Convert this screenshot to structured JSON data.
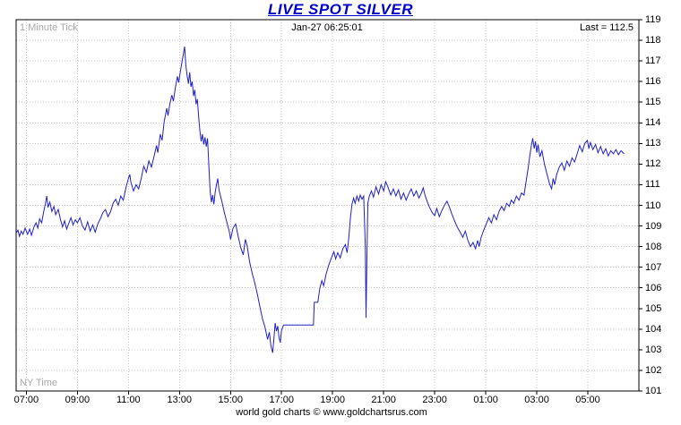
{
  "header": {
    "title": "LIVE SPOT SILVER",
    "timestamp": "Jan-27  06:25:01",
    "tick_label": "1 Minute Tick",
    "last_label": "Last = 112.5"
  },
  "footer": {
    "timezone": "NY Time",
    "credit": "world gold charts © www.goldchartsrus.com"
  },
  "chart_data": {
    "type": "line",
    "title": "LIVE SPOT SILVER",
    "subtitle": "Jan-27  06:25:01",
    "xlabel": "NY Time",
    "ylabel": "",
    "last_value": 112.5,
    "x_ticks": [
      "07:00",
      "09:00",
      "11:00",
      "13:00",
      "15:00",
      "17:00",
      "19:00",
      "21:00",
      "23:00",
      "01:00",
      "03:00",
      "05:00"
    ],
    "x_tick_hours": [
      0,
      2,
      4,
      6,
      8,
      10,
      12,
      14,
      16,
      18,
      20,
      22
    ],
    "xlim": [
      -0.4,
      24.0
    ],
    "ylim": [
      101,
      119
    ],
    "y_tick_step": 1,
    "grid": true,
    "line_color": "#2020cc",
    "grid_color": "#c8c8c8",
    "axis_color": "#000000",
    "title_color": "#0000cc",
    "points": [
      [
        -0.4,
        108.65
      ],
      [
        -0.33,
        108.8
      ],
      [
        -0.27,
        108.5
      ],
      [
        -0.2,
        108.75
      ],
      [
        -0.13,
        108.6
      ],
      [
        -0.05,
        108.9
      ],
      [
        0.05,
        108.6
      ],
      [
        0.13,
        108.85
      ],
      [
        0.2,
        108.55
      ],
      [
        0.3,
        108.95
      ],
      [
        0.38,
        109.15
      ],
      [
        0.45,
        108.9
      ],
      [
        0.52,
        109.35
      ],
      [
        0.6,
        109.15
      ],
      [
        0.68,
        109.7
      ],
      [
        0.75,
        110.1
      ],
      [
        0.8,
        110.45
      ],
      [
        0.85,
        109.9
      ],
      [
        0.92,
        110.15
      ],
      [
        1.0,
        109.7
      ],
      [
        1.08,
        109.95
      ],
      [
        1.15,
        109.55
      ],
      [
        1.25,
        109.8
      ],
      [
        1.33,
        109.35
      ],
      [
        1.42,
        108.95
      ],
      [
        1.5,
        109.25
      ],
      [
        1.58,
        108.85
      ],
      [
        1.67,
        109.15
      ],
      [
        1.75,
        109.4
      ],
      [
        1.83,
        109.05
      ],
      [
        1.92,
        109.3
      ],
      [
        2.0,
        109.15
      ],
      [
        2.1,
        109.4
      ],
      [
        2.2,
        109.0
      ],
      [
        2.3,
        108.8
      ],
      [
        2.4,
        109.2
      ],
      [
        2.5,
        108.75
      ],
      [
        2.6,
        109.05
      ],
      [
        2.7,
        108.7
      ],
      [
        2.8,
        109.1
      ],
      [
        2.9,
        109.35
      ],
      [
        3.0,
        109.65
      ],
      [
        3.1,
        109.8
      ],
      [
        3.2,
        109.45
      ],
      [
        3.3,
        109.7
      ],
      [
        3.4,
        110.1
      ],
      [
        3.5,
        110.3
      ],
      [
        3.6,
        110.0
      ],
      [
        3.7,
        110.45
      ],
      [
        3.8,
        110.25
      ],
      [
        3.9,
        110.85
      ],
      [
        4.0,
        111.3
      ],
      [
        4.05,
        111.5
      ],
      [
        4.1,
        111.1
      ],
      [
        4.2,
        110.7
      ],
      [
        4.3,
        111.0
      ],
      [
        4.4,
        110.8
      ],
      [
        4.5,
        111.3
      ],
      [
        4.6,
        111.9
      ],
      [
        4.7,
        111.6
      ],
      [
        4.8,
        112.15
      ],
      [
        4.9,
        111.85
      ],
      [
        5.0,
        112.35
      ],
      [
        5.1,
        112.9
      ],
      [
        5.15,
        112.55
      ],
      [
        5.25,
        113.45
      ],
      [
        5.32,
        113.15
      ],
      [
        5.4,
        114.05
      ],
      [
        5.5,
        114.7
      ],
      [
        5.55,
        114.35
      ],
      [
        5.62,
        114.9
      ],
      [
        5.7,
        115.35
      ],
      [
        5.76,
        115.05
      ],
      [
        5.84,
        115.7
      ],
      [
        5.92,
        116.25
      ],
      [
        5.97,
        115.95
      ],
      [
        6.05,
        116.6
      ],
      [
        6.12,
        117.1
      ],
      [
        6.2,
        117.7
      ],
      [
        6.25,
        116.8
      ],
      [
        6.3,
        116.3
      ],
      [
        6.35,
        115.9
      ],
      [
        6.4,
        116.45
      ],
      [
        6.45,
        115.75
      ],
      [
        6.5,
        116.0
      ],
      [
        6.55,
        115.3
      ],
      [
        6.6,
        115.6
      ],
      [
        6.65,
        114.9
      ],
      [
        6.7,
        115.15
      ],
      [
        6.75,
        114.3
      ],
      [
        6.8,
        113.6
      ],
      [
        6.85,
        113.1
      ],
      [
        6.9,
        113.45
      ],
      [
        6.95,
        112.95
      ],
      [
        7.0,
        113.3
      ],
      [
        7.05,
        112.85
      ],
      [
        7.1,
        113.25
      ],
      [
        7.15,
        111.9
      ],
      [
        7.2,
        110.7
      ],
      [
        7.25,
        110.15
      ],
      [
        7.3,
        110.5
      ],
      [
        7.35,
        110.05
      ],
      [
        7.4,
        110.65
      ],
      [
        7.45,
        111.0
      ],
      [
        7.5,
        111.3
      ],
      [
        7.55,
        110.75
      ],
      [
        7.65,
        110.25
      ],
      [
        7.75,
        109.7
      ],
      [
        7.85,
        109.2
      ],
      [
        7.95,
        108.75
      ],
      [
        8.0,
        108.35
      ],
      [
        8.1,
        108.9
      ],
      [
        8.2,
        109.1
      ],
      [
        8.3,
        108.5
      ],
      [
        8.4,
        107.95
      ],
      [
        8.5,
        107.6
      ],
      [
        8.58,
        108.35
      ],
      [
        8.65,
        108.05
      ],
      [
        8.75,
        107.25
      ],
      [
        8.85,
        106.7
      ],
      [
        8.95,
        106.25
      ],
      [
        9.05,
        105.7
      ],
      [
        9.15,
        105.1
      ],
      [
        9.25,
        104.5
      ],
      [
        9.35,
        104.1
      ],
      [
        9.45,
        103.5
      ],
      [
        9.52,
        103.85
      ],
      [
        9.58,
        103.2
      ],
      [
        9.65,
        102.85
      ],
      [
        9.7,
        103.55
      ],
      [
        9.75,
        104.3
      ],
      [
        9.8,
        103.9
      ],
      [
        9.85,
        104.15
      ],
      [
        9.9,
        103.6
      ],
      [
        9.95,
        103.35
      ],
      [
        10.0,
        103.95
      ],
      [
        10.08,
        104.2
      ],
      [
        11.25,
        104.2
      ],
      [
        11.28,
        105.3
      ],
      [
        11.42,
        105.3
      ],
      [
        11.5,
        106.0
      ],
      [
        11.58,
        106.35
      ],
      [
        11.65,
        106.1
      ],
      [
        11.75,
        106.7
      ],
      [
        11.85,
        107.1
      ],
      [
        11.95,
        107.45
      ],
      [
        12.05,
        107.75
      ],
      [
        12.12,
        107.4
      ],
      [
        12.2,
        107.7
      ],
      [
        12.3,
        107.45
      ],
      [
        12.4,
        107.9
      ],
      [
        12.5,
        108.1
      ],
      [
        12.57,
        107.7
      ],
      [
        12.63,
        108.35
      ],
      [
        12.7,
        109.4
      ],
      [
        12.76,
        110.05
      ],
      [
        12.82,
        110.35
      ],
      [
        12.88,
        110.1
      ],
      [
        12.95,
        110.45
      ],
      [
        13.02,
        110.2
      ],
      [
        13.08,
        110.5
      ],
      [
        13.15,
        110.3
      ],
      [
        13.22,
        110.45
      ],
      [
        13.28,
        108.0
      ],
      [
        13.31,
        104.55
      ],
      [
        13.34,
        107.2
      ],
      [
        13.38,
        110.1
      ],
      [
        13.44,
        110.45
      ],
      [
        13.52,
        110.7
      ],
      [
        13.6,
        110.4
      ],
      [
        13.7,
        110.9
      ],
      [
        13.8,
        110.55
      ],
      [
        13.9,
        111.0
      ],
      [
        14.0,
        110.7
      ],
      [
        14.08,
        111.15
      ],
      [
        14.18,
        110.85
      ],
      [
        14.28,
        110.5
      ],
      [
        14.38,
        110.8
      ],
      [
        14.48,
        110.45
      ],
      [
        14.58,
        110.75
      ],
      [
        14.68,
        110.3
      ],
      [
        14.78,
        110.6
      ],
      [
        14.88,
        110.25
      ],
      [
        14.98,
        110.55
      ],
      [
        15.08,
        110.8
      ],
      [
        15.18,
        110.45
      ],
      [
        15.28,
        110.7
      ],
      [
        15.38,
        110.35
      ],
      [
        15.48,
        110.6
      ],
      [
        15.55,
        110.85
      ],
      [
        15.62,
        110.5
      ],
      [
        15.7,
        110.2
      ],
      [
        15.8,
        109.9
      ],
      [
        15.9,
        109.65
      ],
      [
        16.0,
        109.5
      ],
      [
        16.08,
        109.85
      ],
      [
        16.18,
        109.45
      ],
      [
        16.28,
        109.75
      ],
      [
        16.38,
        110.0
      ],
      [
        16.48,
        110.2
      ],
      [
        16.58,
        109.9
      ],
      [
        16.68,
        109.55
      ],
      [
        16.78,
        109.25
      ],
      [
        16.88,
        108.95
      ],
      [
        17.0,
        108.7
      ],
      [
        17.1,
        108.45
      ],
      [
        17.2,
        108.75
      ],
      [
        17.3,
        108.3
      ],
      [
        17.4,
        108.0
      ],
      [
        17.5,
        108.2
      ],
      [
        17.6,
        107.9
      ],
      [
        17.68,
        108.3
      ],
      [
        17.74,
        108.0
      ],
      [
        17.82,
        108.45
      ],
      [
        17.92,
        108.8
      ],
      [
        18.02,
        109.1
      ],
      [
        18.12,
        109.4
      ],
      [
        18.22,
        109.15
      ],
      [
        18.32,
        109.55
      ],
      [
        18.42,
        109.3
      ],
      [
        18.52,
        109.7
      ],
      [
        18.62,
        109.95
      ],
      [
        18.72,
        109.75
      ],
      [
        18.82,
        110.1
      ],
      [
        18.92,
        109.95
      ],
      [
        19.0,
        110.25
      ],
      [
        19.1,
        110.1
      ],
      [
        19.2,
        110.45
      ],
      [
        19.3,
        110.25
      ],
      [
        19.4,
        110.6
      ],
      [
        19.5,
        110.5
      ],
      [
        19.58,
        111.15
      ],
      [
        19.66,
        111.8
      ],
      [
        19.72,
        112.35
      ],
      [
        19.78,
        112.85
      ],
      [
        19.84,
        113.25
      ],
      [
        19.9,
        112.75
      ],
      [
        19.95,
        113.1
      ],
      [
        20.0,
        112.55
      ],
      [
        20.05,
        112.95
      ],
      [
        20.12,
        112.35
      ],
      [
        20.2,
        112.65
      ],
      [
        20.3,
        112.0
      ],
      [
        20.4,
        111.5
      ],
      [
        20.5,
        111.05
      ],
      [
        20.58,
        110.8
      ],
      [
        20.64,
        111.3
      ],
      [
        20.7,
        111.0
      ],
      [
        20.78,
        111.5
      ],
      [
        20.88,
        111.85
      ],
      [
        20.98,
        112.05
      ],
      [
        21.08,
        111.7
      ],
      [
        21.18,
        112.15
      ],
      [
        21.28,
        111.9
      ],
      [
        21.38,
        112.3
      ],
      [
        21.48,
        112.1
      ],
      [
        21.58,
        112.5
      ],
      [
        21.68,
        112.9
      ],
      [
        21.78,
        112.6
      ],
      [
        21.88,
        113.0
      ],
      [
        21.98,
        113.15
      ],
      [
        22.04,
        112.75
      ],
      [
        22.1,
        113.05
      ],
      [
        22.2,
        112.7
      ],
      [
        22.3,
        112.95
      ],
      [
        22.4,
        112.55
      ],
      [
        22.5,
        112.85
      ],
      [
        22.6,
        112.5
      ],
      [
        22.7,
        112.75
      ],
      [
        22.8,
        112.4
      ],
      [
        22.9,
        112.65
      ],
      [
        23.0,
        112.5
      ],
      [
        23.1,
        112.7
      ],
      [
        23.2,
        112.45
      ],
      [
        23.3,
        112.65
      ],
      [
        23.42,
        112.5
      ]
    ]
  }
}
